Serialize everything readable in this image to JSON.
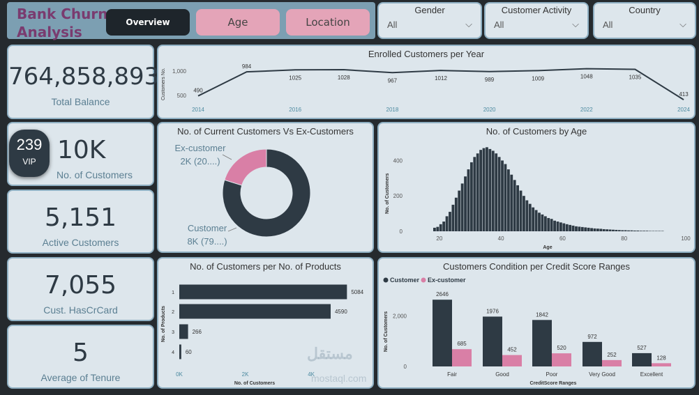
{
  "header": {
    "title": "Bank Churn Analysis",
    "tabs": [
      {
        "label": "Overview",
        "active": true
      },
      {
        "label": "Age",
        "active": false
      },
      {
        "label": "Location",
        "active": false
      }
    ]
  },
  "filters": [
    {
      "label": "Gender",
      "value": "All"
    },
    {
      "label": "Customer Activity",
      "value": "All"
    },
    {
      "label": "Country",
      "value": "All"
    }
  ],
  "kpis": {
    "total_balance": {
      "value": "764,858,893",
      "label": "Total Balance"
    },
    "customers": {
      "value": "10K",
      "label": "No. of Customers",
      "vip_value": "239",
      "vip_label": "VIP"
    },
    "active": {
      "value": "5,151",
      "label": "Active Customers"
    },
    "hascrcard": {
      "value": "7,055",
      "label": "Cust. HasCrCard"
    },
    "tenure": {
      "value": "5",
      "label": "Average of Tenure"
    }
  },
  "colors": {
    "customer": "#2e3a44",
    "ex_customer": "#d97fa6",
    "accent": "#5b7f92"
  },
  "watermark": {
    "text": "مستقل",
    "sub": "mostaql.com"
  },
  "chart_data": [
    {
      "type": "line",
      "title": "Enrolled Customers per Year",
      "ylabel": "Customers No.",
      "x": [
        2014,
        2015,
        2016,
        2017,
        2018,
        2019,
        2020,
        2021,
        2022,
        2023,
        2024
      ],
      "x_ticks": [
        "2014",
        "2016",
        "2018",
        "2020",
        "2022",
        "2024"
      ],
      "y_ticks": [
        "500",
        "1,000"
      ],
      "values": [
        490,
        984,
        1025,
        1028,
        967,
        1012,
        989,
        1009,
        1048,
        1035,
        413
      ],
      "ylim": [
        400,
        1100
      ]
    },
    {
      "type": "pie",
      "title": "No. of Current Customers Vs Ex-Customers",
      "slices": [
        {
          "name": "Customer",
          "label": "8K (79....)",
          "value": 79
        },
        {
          "name": "Ex-customer",
          "label": "2K (20....)",
          "value": 20
        }
      ]
    },
    {
      "type": "bar",
      "title": "No. of Customers by Age",
      "xlabel": "Age",
      "ylabel": "No. of Customers",
      "x_ticks": [
        "20",
        "40",
        "60",
        "80",
        "100"
      ],
      "y_ticks": [
        "0",
        "200",
        "400"
      ],
      "ylim": [
        0,
        500
      ],
      "xlim": [
        18,
        100
      ],
      "x": [
        18,
        19,
        20,
        21,
        22,
        23,
        24,
        25,
        26,
        27,
        28,
        29,
        30,
        31,
        32,
        33,
        34,
        35,
        36,
        37,
        38,
        39,
        40,
        41,
        42,
        43,
        44,
        45,
        46,
        47,
        48,
        49,
        50,
        51,
        52,
        53,
        54,
        55,
        56,
        57,
        58,
        59,
        60,
        61,
        62,
        63,
        64,
        65,
        66,
        67,
        68,
        69,
        70,
        71,
        72,
        73,
        74,
        75,
        76,
        77,
        78,
        79,
        80,
        81,
        82,
        83,
        84,
        85,
        86,
        87,
        88,
        89,
        90,
        91,
        92
      ],
      "values": [
        20,
        25,
        40,
        55,
        85,
        110,
        150,
        190,
        230,
        270,
        310,
        350,
        390,
        420,
        440,
        460,
        470,
        475,
        465,
        455,
        440,
        420,
        400,
        380,
        350,
        320,
        290,
        260,
        230,
        200,
        175,
        155,
        135,
        120,
        105,
        95,
        85,
        75,
        70,
        60,
        55,
        50,
        45,
        40,
        36,
        32,
        28,
        26,
        24,
        22,
        20,
        18,
        16,
        15,
        14,
        12,
        11,
        10,
        9,
        8,
        7,
        6,
        6,
        5,
        5,
        4,
        4,
        3,
        3,
        3,
        2,
        2,
        2,
        2,
        2
      ]
    },
    {
      "type": "bar",
      "title": "No. of Customers per No. of Products",
      "orientation": "horizontal",
      "xlabel": "No. of Customers",
      "ylabel": "No. of Products",
      "categories": [
        "1",
        "2",
        "3",
        "4"
      ],
      "values": [
        5084,
        4590,
        266,
        60
      ],
      "x_ticks": [
        "0K",
        "2K",
        "4K"
      ],
      "xlim": [
        0,
        5500
      ]
    },
    {
      "type": "bar",
      "title": "Customers Condition per Credit Score Ranges",
      "xlabel": "CreditScore Ranges",
      "ylabel": "No. of Customers",
      "legend": "top-left",
      "categories": [
        "Fair",
        "Good",
        "Poor",
        "Very Good",
        "Excellent"
      ],
      "y_ticks": [
        "0",
        "2,000"
      ],
      "ylim": [
        0,
        2900
      ],
      "series": [
        {
          "name": "Customer",
          "values": [
            2646,
            1976,
            1842,
            972,
            527
          ]
        },
        {
          "name": "Ex-customer",
          "values": [
            685,
            452,
            520,
            252,
            128
          ]
        }
      ]
    }
  ]
}
